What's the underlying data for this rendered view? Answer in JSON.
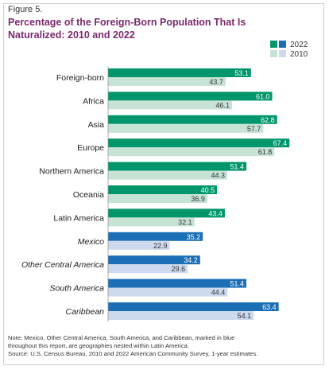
{
  "figure_label": "Figure 5.",
  "title_line1": "Percentage of the Foreign-Born Population That Is",
  "title_line2": "Naturalized: 2010 and 2022",
  "note": "Note: Mexico, Other Central America, South America, and Caribbean, marked in blue",
  "note2": "throughout this report, are geographies nested within Latin America.",
  "source": "Source: U.S. Census Bureau, 2010 and 2022 American Community Survey, 1-year estimates.",
  "colors": {
    "green_2022": "#00966b",
    "green_2010": "#c6e3d6",
    "blue_2022": "#1c6fb5",
    "blue_2010": "#cdd9ee",
    "title": "#7b2a6f"
  },
  "chart_data": {
    "type": "bar",
    "orientation": "horizontal",
    "title": "Percentage of the Foreign-Born Population That Is Naturalized: 2010 and 2022",
    "xlim": [
      0,
      70
    ],
    "legend": {
      "placement": "top-right",
      "entries": [
        "2022",
        "2010"
      ]
    },
    "categories": [
      {
        "label": "Foreign-born",
        "italic": false,
        "group": "green"
      },
      {
        "label": "Africa",
        "italic": false,
        "group": "green"
      },
      {
        "label": "Asia",
        "italic": false,
        "group": "green"
      },
      {
        "label": "Europe",
        "italic": false,
        "group": "green"
      },
      {
        "label": "Northern America",
        "italic": false,
        "group": "green"
      },
      {
        "label": "Oceania",
        "italic": false,
        "group": "green"
      },
      {
        "label": "Latin America",
        "italic": false,
        "group": "green"
      },
      {
        "label": "Mexico",
        "italic": true,
        "group": "blue"
      },
      {
        "label": "Other Central America",
        "italic": true,
        "group": "blue"
      },
      {
        "label": "South America",
        "italic": true,
        "group": "blue"
      },
      {
        "label": "Caribbean",
        "italic": true,
        "group": "blue"
      }
    ],
    "series": [
      {
        "name": "2022",
        "values": [
          53.1,
          61.0,
          62.8,
          67.4,
          51.4,
          40.5,
          43.4,
          35.2,
          34.2,
          51.4,
          63.4
        ]
      },
      {
        "name": "2010",
        "values": [
          43.7,
          46.1,
          57.7,
          61.8,
          44.3,
          36.9,
          32.1,
          22.9,
          29.6,
          44.4,
          54.1
        ]
      }
    ]
  }
}
